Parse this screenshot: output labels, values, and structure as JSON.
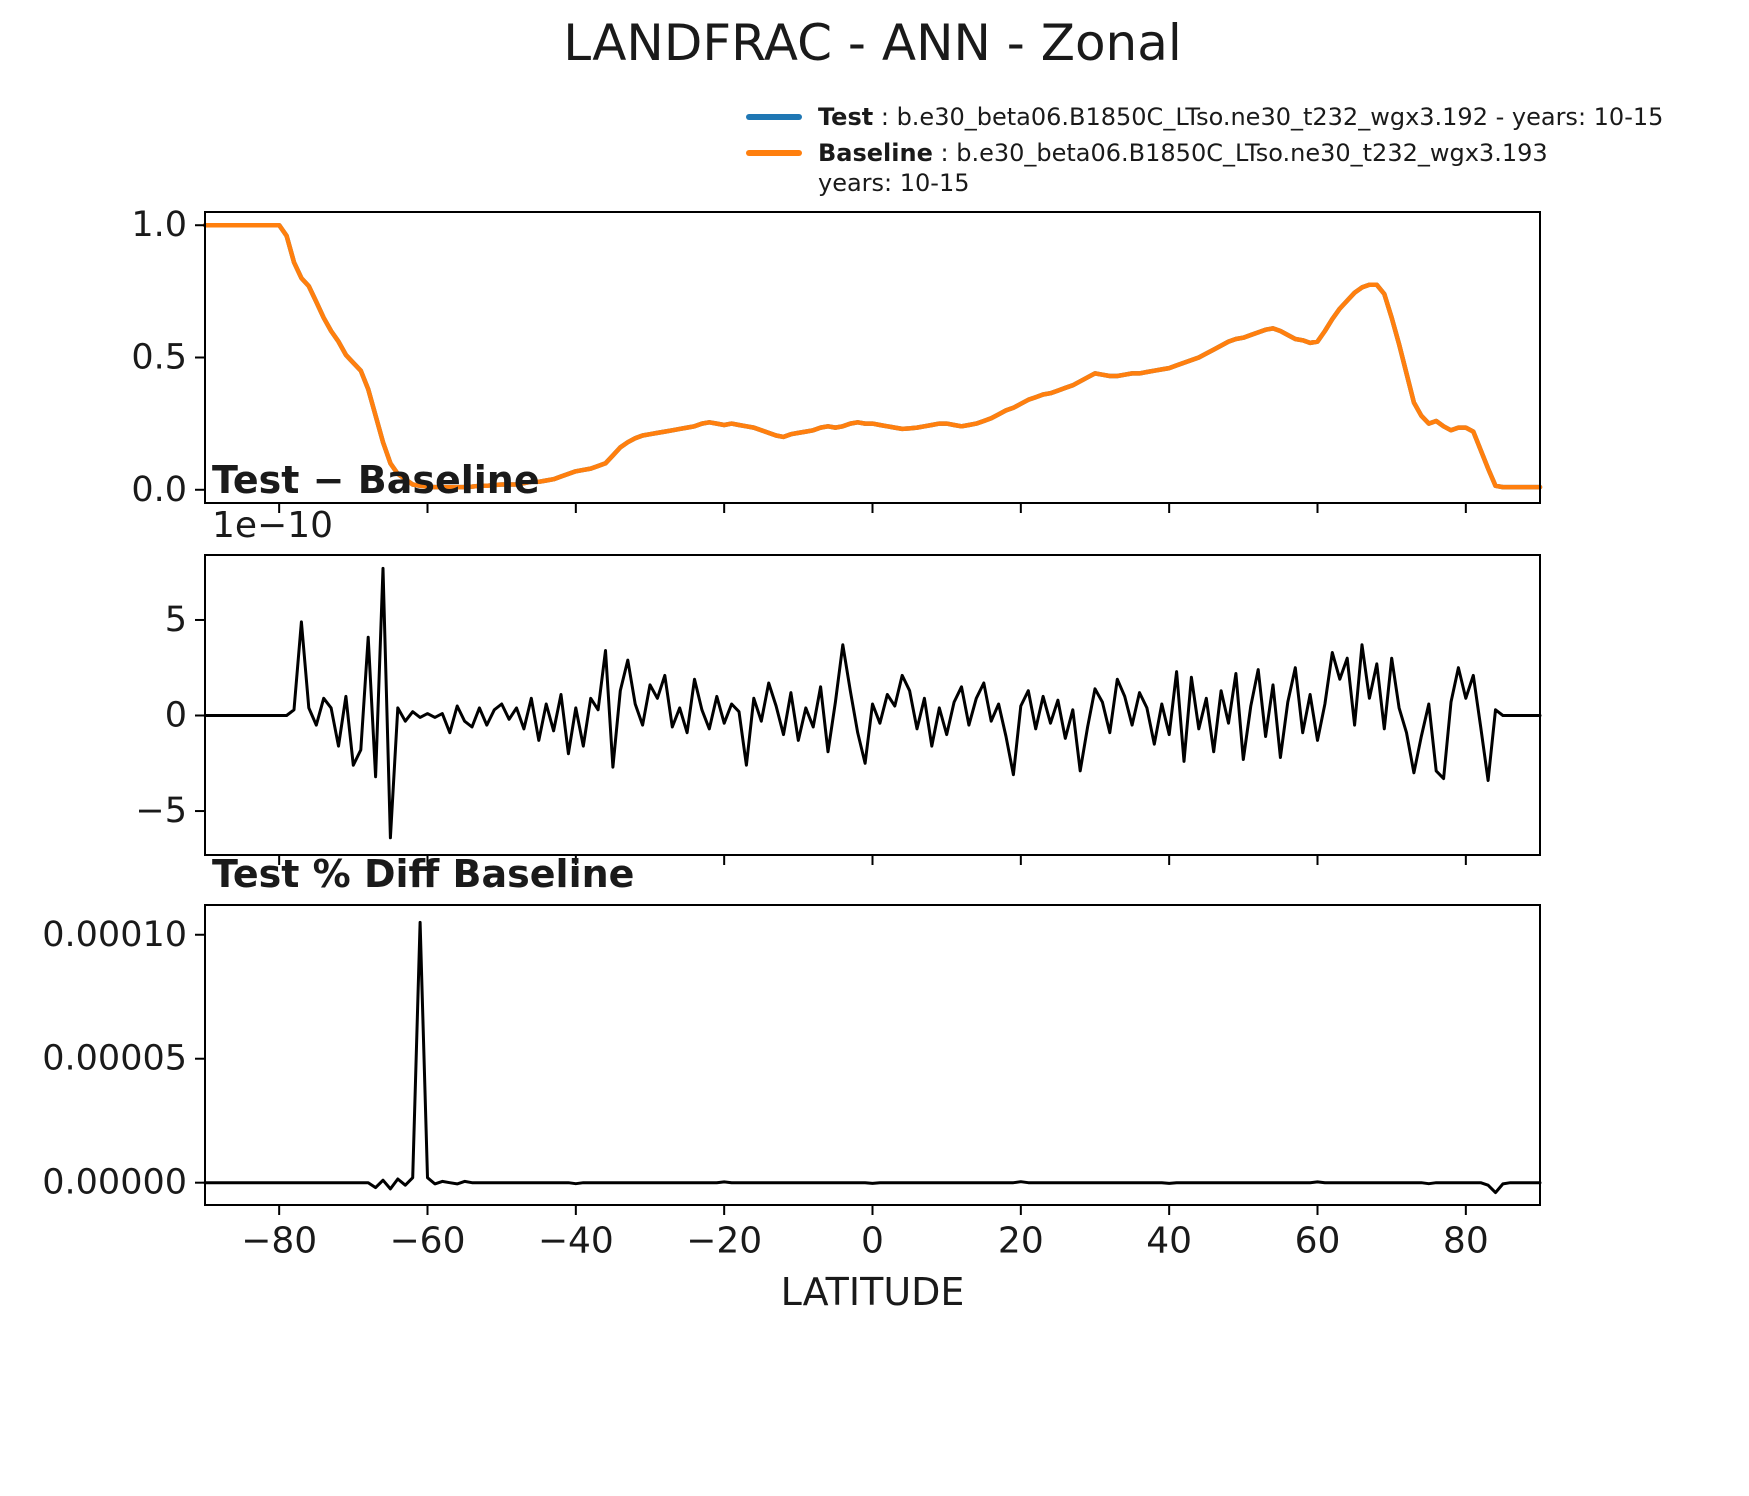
{
  "title": "LANDFRAC - ANN - Zonal",
  "xlabel": "LATITUDE",
  "colors": {
    "test": "#1f77b4",
    "baseline": "#ff7f0e",
    "diff": "#000000"
  },
  "legend": {
    "entries": [
      {
        "label": "Test",
        "rest": " : b.e30_beta06.B1850C_LTso.ne30_t232_wgx3.192 - years: 10-15",
        "rest2": "",
        "color": "#1f77b4"
      },
      {
        "label": "Baseline",
        "rest": " : b.e30_beta06.B1850C_LTso.ne30_t232_wgx3.193",
        "rest2": "years: 10-15",
        "color": "#ff7f0e"
      }
    ]
  },
  "xticks": [
    -80,
    -60,
    -40,
    -20,
    0,
    20,
    40,
    60,
    80
  ],
  "xtick_labels": [
    "−80",
    "−60",
    "−40",
    "−20",
    "0",
    "20",
    "40",
    "60",
    "80"
  ],
  "xlim": [
    -90,
    90
  ],
  "latitudes": [
    -90,
    -89,
    -88,
    -87,
    -86,
    -85,
    -84,
    -83,
    -82,
    -81,
    -80,
    -79,
    -78,
    -77,
    -76,
    -75,
    -74,
    -73,
    -72,
    -71,
    -70,
    -69,
    -68,
    -67,
    -66,
    -65,
    -64,
    -63,
    -62,
    -61,
    -60,
    -59,
    -58,
    -57,
    -56,
    -55,
    -54,
    -53,
    -52,
    -51,
    -50,
    -49,
    -48,
    -47,
    -46,
    -45,
    -44,
    -43,
    -42,
    -41,
    -40,
    -39,
    -38,
    -37,
    -36,
    -35,
    -34,
    -33,
    -32,
    -31,
    -30,
    -29,
    -28,
    -27,
    -26,
    -25,
    -24,
    -23,
    -22,
    -21,
    -20,
    -19,
    -18,
    -17,
    -16,
    -15,
    -14,
    -13,
    -12,
    -11,
    -10,
    -9,
    -8,
    -7,
    -6,
    -5,
    -4,
    -3,
    -2,
    -1,
    0,
    1,
    2,
    3,
    4,
    5,
    6,
    7,
    8,
    9,
    10,
    11,
    12,
    13,
    14,
    15,
    16,
    17,
    18,
    19,
    20,
    21,
    22,
    23,
    24,
    25,
    26,
    27,
    28,
    29,
    30,
    31,
    32,
    33,
    34,
    35,
    36,
    37,
    38,
    39,
    40,
    41,
    42,
    43,
    44,
    45,
    46,
    47,
    48,
    49,
    50,
    51,
    52,
    53,
    54,
    55,
    56,
    57,
    58,
    59,
    60,
    61,
    62,
    63,
    64,
    65,
    66,
    67,
    68,
    69,
    70,
    71,
    72,
    73,
    74,
    75,
    76,
    77,
    78,
    79,
    80,
    81,
    82,
    83,
    84,
    85,
    86,
    87,
    88,
    89,
    90
  ],
  "chart_data": [
    {
      "id": "zonal-mean",
      "type": "line",
      "title": "",
      "ylim": [
        -0.05,
        1.05
      ],
      "yticks": [
        0.0,
        0.5,
        1.0
      ],
      "ytick_labels": [
        "0.0",
        "0.5",
        "1.0"
      ],
      "series": [
        {
          "name": "Test",
          "color": "#1f77b4",
          "same_as": "Baseline"
        },
        {
          "name": "Baseline",
          "color": "#ff7f0e",
          "values": [
            1.0,
            1.0,
            1.0,
            1.0,
            1.0,
            1.0,
            1.0,
            1.0,
            1.0,
            1.0,
            1.0,
            0.96,
            0.86,
            0.8,
            0.77,
            0.71,
            0.65,
            0.6,
            0.56,
            0.51,
            0.48,
            0.45,
            0.38,
            0.28,
            0.18,
            0.1,
            0.06,
            0.04,
            0.02,
            0.015,
            0.012,
            0.01,
            0.01,
            0.01,
            0.01,
            0.01,
            0.012,
            0.015,
            0.015,
            0.018,
            0.02,
            0.02,
            0.02,
            0.025,
            0.03,
            0.03,
            0.035,
            0.04,
            0.05,
            0.06,
            0.07,
            0.075,
            0.08,
            0.09,
            0.1,
            0.13,
            0.16,
            0.18,
            0.195,
            0.205,
            0.21,
            0.215,
            0.22,
            0.225,
            0.23,
            0.235,
            0.24,
            0.25,
            0.255,
            0.25,
            0.245,
            0.25,
            0.245,
            0.24,
            0.235,
            0.225,
            0.215,
            0.205,
            0.2,
            0.21,
            0.215,
            0.22,
            0.225,
            0.235,
            0.24,
            0.235,
            0.24,
            0.25,
            0.255,
            0.25,
            0.25,
            0.245,
            0.24,
            0.235,
            0.23,
            0.232,
            0.235,
            0.24,
            0.245,
            0.25,
            0.25,
            0.245,
            0.24,
            0.245,
            0.25,
            0.26,
            0.27,
            0.285,
            0.3,
            0.31,
            0.325,
            0.34,
            0.35,
            0.36,
            0.365,
            0.375,
            0.385,
            0.395,
            0.41,
            0.425,
            0.44,
            0.435,
            0.43,
            0.43,
            0.435,
            0.44,
            0.44,
            0.445,
            0.45,
            0.455,
            0.46,
            0.47,
            0.48,
            0.49,
            0.5,
            0.515,
            0.53,
            0.545,
            0.56,
            0.57,
            0.575,
            0.585,
            0.595,
            0.605,
            0.61,
            0.6,
            0.585,
            0.57,
            0.565,
            0.555,
            0.56,
            0.6,
            0.645,
            0.685,
            0.715,
            0.745,
            0.765,
            0.775,
            0.775,
            0.74,
            0.65,
            0.55,
            0.44,
            0.33,
            0.28,
            0.25,
            0.26,
            0.24,
            0.225,
            0.235,
            0.235,
            0.22,
            0.15,
            0.08,
            0.015,
            0.01,
            0.01,
            0.01,
            0.01,
            0.01,
            0.01
          ]
        }
      ]
    },
    {
      "id": "difference",
      "type": "line",
      "title": "Test − Baseline",
      "offset_text": "1e−10",
      "unit_scale": 1e-10,
      "ylim": [
        -7.3,
        8.4
      ],
      "yticks": [
        -5,
        0,
        5
      ],
      "ytick_labels": [
        "−5",
        "0",
        "5"
      ],
      "series": [
        {
          "name": "Test − Baseline",
          "color": "#000000",
          "values": [
            0,
            0,
            0,
            0,
            0,
            0,
            0,
            0,
            0,
            0,
            0,
            0,
            0.3,
            4.9,
            0.4,
            -0.5,
            0.9,
            0.4,
            -1.6,
            1.0,
            -2.6,
            -1.8,
            4.1,
            -3.2,
            7.7,
            -6.4,
            0.4,
            -0.3,
            0.2,
            -0.1,
            0.1,
            -0.1,
            0.1,
            -0.9,
            0.5,
            -0.3,
            -0.6,
            0.4,
            -0.5,
            0.3,
            0.6,
            -0.2,
            0.4,
            -0.7,
            0.9,
            -1.3,
            0.6,
            -0.8,
            1.1,
            -2.0,
            0.4,
            -1.6,
            0.9,
            0.3,
            3.4,
            -2.7,
            1.3,
            2.9,
            0.6,
            -0.5,
            1.6,
            0.9,
            2.1,
            -0.6,
            0.4,
            -0.9,
            1.9,
            0.3,
            -0.7,
            1.0,
            -0.4,
            0.6,
            0.2,
            -2.6,
            0.9,
            -0.3,
            1.7,
            0.5,
            -1.0,
            1.2,
            -1.3,
            0.4,
            -0.6,
            1.5,
            -1.9,
            0.7,
            3.7,
            1.3,
            -0.9,
            -2.5,
            0.6,
            -0.4,
            1.1,
            0.5,
            2.1,
            1.3,
            -0.7,
            0.9,
            -1.6,
            0.4,
            -1.0,
            0.7,
            1.5,
            -0.5,
            0.9,
            1.7,
            -0.3,
            0.6,
            -1.1,
            -3.1,
            0.5,
            1.3,
            -0.7,
            1.0,
            -0.4,
            0.8,
            -1.2,
            0.3,
            -2.9,
            -0.6,
            1.4,
            0.7,
            -0.9,
            1.9,
            1.0,
            -0.5,
            1.2,
            0.4,
            -1.5,
            0.6,
            -1.0,
            2.3,
            -2.4,
            2.0,
            -0.7,
            0.9,
            -1.9,
            1.3,
            -0.4,
            2.2,
            -2.3,
            0.5,
            2.4,
            -1.1,
            1.6,
            -2.2,
            0.7,
            2.5,
            -0.9,
            1.1,
            -1.3,
            0.6,
            3.3,
            1.9,
            3.0,
            -0.5,
            3.7,
            0.9,
            2.7,
            -0.7,
            3.0,
            0.4,
            -0.9,
            -3.0,
            -1.1,
            0.6,
            -2.9,
            -3.3,
            0.7,
            2.5,
            0.9,
            2.1,
            -0.6,
            -3.4,
            0.3,
            0,
            0,
            0,
            0,
            0,
            0
          ]
        }
      ]
    },
    {
      "id": "percent-difference",
      "type": "line",
      "title": "Test % Diff Baseline",
      "ylim": [
        -9e-06,
        0.000112
      ],
      "yticks": [
        0.0,
        5e-05,
        0.0001
      ],
      "ytick_labels": [
        "0.00000",
        "0.00005",
        "0.00010"
      ],
      "series": [
        {
          "name": "Test % Diff Baseline",
          "color": "#000000",
          "values": [
            0,
            0,
            0,
            0,
            0,
            0,
            0,
            0,
            0,
            0,
            0,
            0,
            0,
            0,
            0,
            0,
            0,
            0,
            0,
            0,
            0,
            0,
            0,
            -2e-06,
            1e-06,
            -2.5e-06,
            1.5e-06,
            -1e-06,
            2e-06,
            0.000105,
            2e-06,
            -5e-07,
            5e-07,
            0,
            -5e-07,
            5e-07,
            0,
            0,
            0,
            0,
            0,
            0,
            0,
            0,
            0,
            0,
            0,
            0,
            0,
            0,
            -4e-07,
            0,
            0,
            0,
            0,
            0,
            0,
            0,
            0,
            0,
            0,
            0,
            0,
            0,
            0,
            0,
            0,
            0,
            0,
            0,
            3e-07,
            0,
            0,
            0,
            0,
            0,
            0,
            0,
            0,
            0,
            0,
            0,
            0,
            0,
            0,
            0,
            0,
            0,
            0,
            0,
            -3e-07,
            0,
            0,
            0,
            0,
            0,
            0,
            0,
            0,
            0,
            0,
            0,
            0,
            0,
            0,
            0,
            0,
            0,
            0,
            0,
            4e-07,
            0,
            0,
            0,
            0,
            0,
            0,
            0,
            0,
            0,
            0,
            0,
            0,
            0,
            0,
            0,
            0,
            0,
            0,
            0,
            -3e-07,
            0,
            0,
            0,
            0,
            0,
            0,
            0,
            0,
            0,
            0,
            0,
            0,
            0,
            0,
            0,
            0,
            0,
            0,
            0,
            3e-07,
            0,
            0,
            0,
            0,
            0,
            0,
            0,
            0,
            0,
            0,
            0,
            0,
            0,
            0,
            -4e-07,
            0,
            0,
            0,
            0,
            0,
            0,
            0,
            -1e-06,
            -4e-06,
            -5e-07,
            0,
            0,
            0,
            0,
            0
          ]
        }
      ]
    }
  ]
}
